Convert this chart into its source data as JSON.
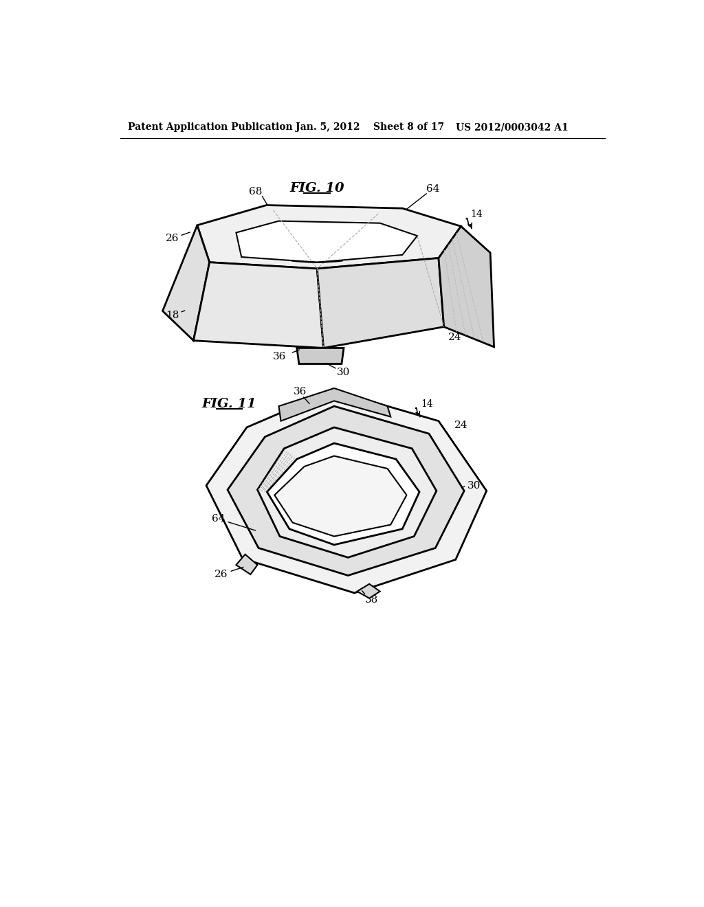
{
  "background_color": "#ffffff",
  "header_text": "Patent Application Publication",
  "header_date": "Jan. 5, 2012",
  "header_sheet": "Sheet 8 of 17",
  "header_patent": "US 2012/0003042 A1",
  "fig10_title": "FIG. 10",
  "fig11_title": "FIG. 11",
  "line_color": "#000000",
  "line_width": 1.5,
  "dashed_color": "#888888",
  "label_fontsize": 11,
  "title_fontsize": 14,
  "header_fontsize": 10
}
